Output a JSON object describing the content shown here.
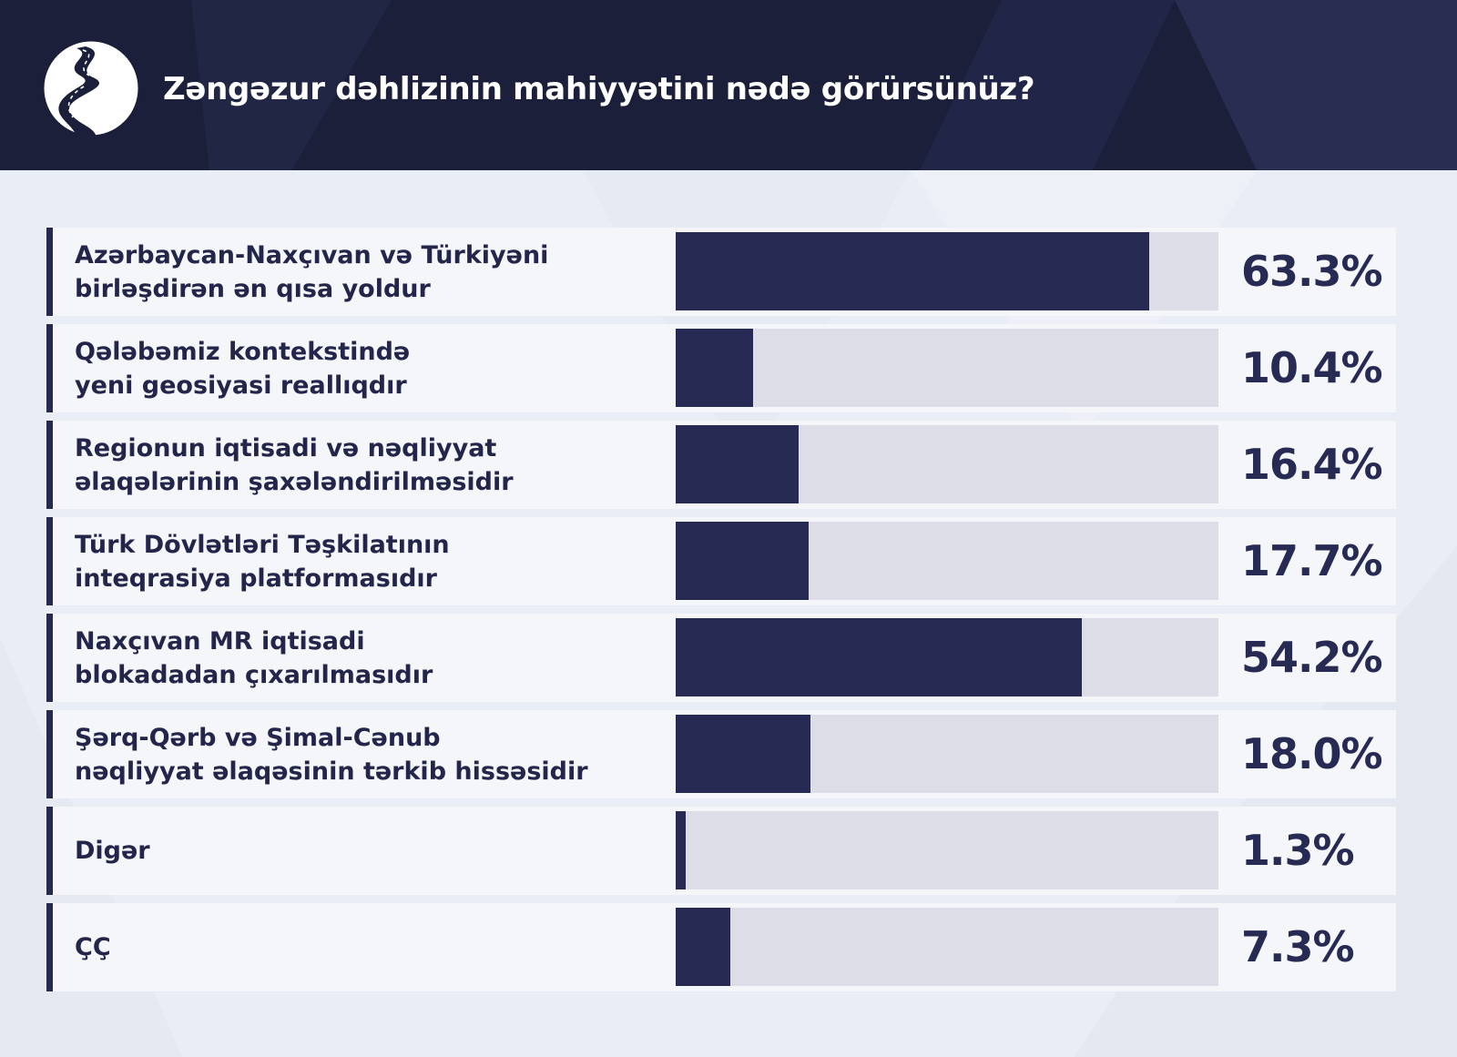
{
  "title": "Zəngəzur dəhlizinin mahiyyətini nədə görürsünüz?",
  "logo_icon": "winding-road-icon",
  "colors": {
    "header_bg": "#1b1f3a",
    "page_bg": "#e9edf5",
    "bar_fill": "#272a53",
    "bar_track": "#dcdde7",
    "text": "#23264a"
  },
  "chart_data": {
    "type": "bar",
    "orientation": "horizontal",
    "title": "Zəngəzur dəhlizinin mahiyyətini nədə görürsünüz?",
    "unit": "%",
    "xlim": [
      0,
      72.5
    ],
    "categories": [
      "Azərbaycan-Naxçıvan və Türkiyəni birləşdirən ən qısa yoldur",
      "Qələbəmiz kontekstində yeni geosiyasi reallıqdır",
      "Regionun iqtisadi və nəqliyyat əlaqələrinin şaxələndirilməsidir",
      "Türk Dövlətləri Təşkilatının inteqrasiya platformasıdır",
      "Naxçıvan MR iqtisadi blokadadan çıxarılmasıdır",
      "Şərq-Qərb və Şimal-Cənub nəqliyyat əlaqəsinin tərkib hissəsidir",
      "Digər",
      "ÇÇ"
    ],
    "values": [
      63.3,
      10.4,
      16.4,
      17.7,
      54.2,
      18.0,
      1.3,
      7.3
    ],
    "value_labels": [
      "63.3%",
      "10.4%",
      "16.4%",
      "17.7%",
      "54.2%",
      "18.0%",
      "1.3%",
      "7.3%"
    ],
    "label_lines": [
      [
        "Azərbaycan-Naxçıvan və Türkiyəni",
        "birləşdirən ən qısa yoldur"
      ],
      [
        "Qələbəmiz kontekstində",
        "yeni geosiyasi reallıqdır"
      ],
      [
        "Regionun iqtisadi və nəqliyyat",
        "əlaqələrinin şaxələndirilməsidir"
      ],
      [
        "Türk Dövlətləri Təşkilatının",
        "inteqrasiya platformasıdır"
      ],
      [
        "Naxçıvan MR iqtisadi",
        "blokadadan çıxarılmasıdır"
      ],
      [
        "Şərq-Qərb və Şimal-Cənub",
        "nəqliyyat əlaqəsinin tərkib hissəsidir"
      ],
      [
        "Digər"
      ],
      [
        "ÇÇ"
      ]
    ]
  }
}
